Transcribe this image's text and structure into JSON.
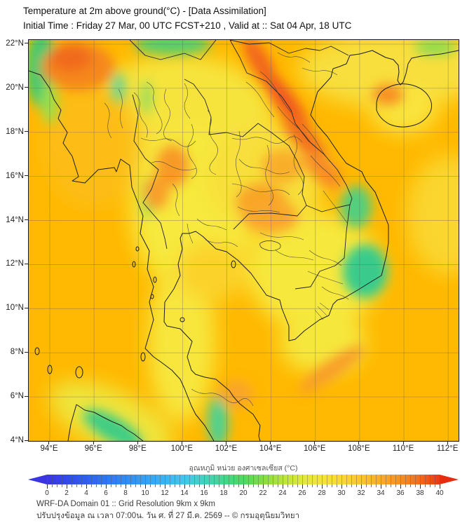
{
  "header": {
    "title_line1": "Temperature at 2m above ground(°C) - [Data Assimilation]",
    "title_line2": "Initial Time : Friday 27 Mar, 00 UTC FCST+210 , Valid at :: Sat 04 Apr, 18 UTC"
  },
  "footer": {
    "line1": "WRF-DA Domain 01 :: Grid Resolution 9km x 9km",
    "line2": "ปรับปรุงข้อมูล ณ เวลา 07:00น. วัน ศ. ที่ 27 มี.ค. 2569 -- © กรมอุตุนิยมวิทยา"
  },
  "colorbar": {
    "title": "อุณหภูมิ หน่วย องศาเซลเซียส (°C)",
    "min": 0,
    "max": 40,
    "tick_labels": [
      "0",
      "2",
      "4",
      "6",
      "8",
      "10",
      "12",
      "14",
      "16",
      "18",
      "20",
      "22",
      "24",
      "26",
      "28",
      "30",
      "32",
      "34",
      "36",
      "38",
      "40"
    ],
    "stops": [
      [
        0,
        "#3B35E1"
      ],
      [
        2,
        "#3149EA"
      ],
      [
        4,
        "#2F5FEF"
      ],
      [
        6,
        "#2F76F1"
      ],
      [
        8,
        "#318BF2"
      ],
      [
        10,
        "#36A0F2"
      ],
      [
        12,
        "#3CB4F1"
      ],
      [
        14,
        "#44C6ED"
      ],
      [
        16,
        "#43D2C0"
      ],
      [
        18,
        "#45D68E"
      ],
      [
        20,
        "#4ED95F"
      ],
      [
        22,
        "#85DC45"
      ],
      [
        24,
        "#B8E43C"
      ],
      [
        26,
        "#E0E93A"
      ],
      [
        28,
        "#F4E437"
      ],
      [
        30,
        "#FAD834"
      ],
      [
        32,
        "#FAC52F"
      ],
      [
        34,
        "#F8AC2A"
      ],
      [
        36,
        "#F59024"
      ],
      [
        38,
        "#F16B1D"
      ],
      [
        40,
        "#EA3815"
      ]
    ],
    "left_arrow_color": "#3B35E1",
    "right_arrow_color": "#E62D10"
  },
  "chart_data": {
    "type": "heatmap",
    "title": "Temperature at 2m above ground (°C), WRF-DA Data Assimilation forecast",
    "x_axis": {
      "label_unit": "degrees East",
      "range": [
        93.05,
        112.47
      ],
      "ticks": [
        {
          "value": 94,
          "label": "94°E"
        },
        {
          "value": 96,
          "label": "96°E"
        },
        {
          "value": 98,
          "label": "98°E"
        },
        {
          "value": 100,
          "label": "100°E"
        },
        {
          "value": 102,
          "label": "102°E"
        },
        {
          "value": 104,
          "label": "104°E"
        },
        {
          "value": 106,
          "label": "106°E"
        },
        {
          "value": 108,
          "label": "108°E"
        },
        {
          "value": 110,
          "label": "110°E"
        },
        {
          "value": 112,
          "label": "112°E"
        }
      ]
    },
    "y_axis": {
      "label_unit": "degrees North",
      "range": [
        4.0,
        22.19
      ],
      "ticks": [
        {
          "value": 22,
          "label": "22°N"
        },
        {
          "value": 20,
          "label": "20°N"
        },
        {
          "value": 18,
          "label": "18°N"
        },
        {
          "value": 16,
          "label": "16°N"
        },
        {
          "value": 14,
          "label": "14°N"
        },
        {
          "value": 12,
          "label": "12°N"
        },
        {
          "value": 10,
          "label": "10°N"
        },
        {
          "value": 8,
          "label": "8°N"
        },
        {
          "value": 6,
          "label": "6°N"
        },
        {
          "value": 4,
          "label": "4°N"
        }
      ]
    },
    "grid": true,
    "legend_position": "bottom colorbar 0-40 °C",
    "base_field_temp_c": 31,
    "base_color": "#FFB900",
    "notable_features": [
      {
        "region": "sea areas (Bay of Bengal, Gulf of Thailand, South China Sea)",
        "approx_temp_c": 30,
        "color": "orange-amber"
      },
      {
        "region": "interior Thailand / Cambodia / Mekong delta lowlands",
        "approx_temp_c": 27,
        "color": "yellow"
      },
      {
        "region": "north Vietnam coast band (Gulf of Tonkin)",
        "approx_temp_c": 37,
        "color": "red-orange"
      },
      {
        "region": "top-left corner (NE India / N Myanmar hills)",
        "approx_temp_c": 21,
        "color": "green with adjacent 36C orange blob"
      },
      {
        "region": "Vietnam central highlands (two patches ~14.5N and ~11.5N)",
        "approx_temp_c": 22,
        "color": "green"
      },
      {
        "region": "Sumatra highlands (bottom left)",
        "approx_temp_c": 22,
        "color": "green"
      },
      {
        "region": "Malay peninsula highlands (~5.5N 101.5E)",
        "approx_temp_c": 24,
        "color": "green"
      },
      {
        "region": "Hainan island spot",
        "approx_temp_c": 34,
        "color": "orange"
      },
      {
        "region": "NW / NE Thailand hot spots",
        "approx_temp_c": 35,
        "color": "orange"
      }
    ],
    "render_blobs": {
      "zones": [
        [
          215,
          115,
          135,
          95,
          0,
          "#F6E43C"
        ],
        [
          235,
          245,
          90,
          115,
          0,
          "#F7E93E"
        ],
        [
          338,
          195,
          85,
          75,
          0,
          "#F8DF3B"
        ],
        [
          408,
          330,
          95,
          85,
          0,
          "#F7E83E"
        ],
        [
          420,
          432,
          62,
          45,
          0,
          "#F6E73C"
        ],
        [
          218,
          430,
          48,
          115,
          0,
          "#F7E73D"
        ],
        [
          118,
          542,
          95,
          42,
          25,
          "#EFE53C"
        ],
        [
          520,
          42,
          135,
          55,
          0,
          "#F8DF3E"
        ],
        [
          535,
          100,
          48,
          34,
          0,
          "#F9E43C"
        ],
        [
          600,
          250,
          60,
          85,
          0,
          "#FAD62E"
        ],
        [
          262,
          330,
          52,
          42,
          0,
          "#FBD22C"
        ],
        [
          90,
          150,
          70,
          90,
          0,
          "#FDBD18"
        ]
      ],
      "spots": [
        [
          18,
          42,
          22,
          55,
          0,
          "#3FCA70"
        ],
        [
          30,
          90,
          12,
          30,
          0,
          "#9ADF4D"
        ],
        [
          205,
          6,
          55,
          15,
          0,
          "#55CF6E"
        ],
        [
          128,
          68,
          10,
          22,
          0,
          "#6FD592"
        ],
        [
          168,
          82,
          7,
          24,
          0,
          "#8ADC60"
        ],
        [
          170,
          225,
          10,
          28,
          0,
          "#98DE55"
        ],
        [
          580,
          10,
          30,
          12,
          0,
          "#8FDC4E"
        ],
        [
          467,
          238,
          22,
          30,
          0,
          "#52CF7D"
        ],
        [
          480,
          330,
          32,
          38,
          0,
          "#38CB8C"
        ],
        [
          120,
          555,
          48,
          17,
          30,
          "#3ECC86"
        ],
        [
          270,
          545,
          15,
          38,
          0,
          "#4FD190"
        ],
        [
          70,
          38,
          52,
          34,
          0,
          "#F5871E"
        ],
        [
          60,
          25,
          30,
          20,
          0,
          "#F16B1A"
        ],
        [
          330,
          32,
          14,
          42,
          -30,
          "#F2661E"
        ],
        [
          368,
          90,
          14,
          55,
          -35,
          "#F05820"
        ],
        [
          395,
          142,
          15,
          48,
          -40,
          "#F3701E"
        ],
        [
          420,
          185,
          17,
          35,
          -45,
          "#F78E26"
        ],
        [
          205,
          180,
          24,
          30,
          0,
          "#F79A26"
        ],
        [
          182,
          218,
          18,
          24,
          0,
          "#F89E2A"
        ],
        [
          332,
          232,
          36,
          28,
          0,
          "#F8A428"
        ],
        [
          362,
          180,
          30,
          24,
          0,
          "#F9AE2C"
        ],
        [
          345,
          252,
          40,
          24,
          0,
          "#F9A72B"
        ],
        [
          295,
          505,
          25,
          20,
          0,
          "#F9A62A"
        ],
        [
          432,
          470,
          56,
          13,
          -35,
          "#F79E2B"
        ],
        [
          512,
          78,
          22,
          15,
          0,
          "#F78E24"
        ]
      ]
    }
  }
}
